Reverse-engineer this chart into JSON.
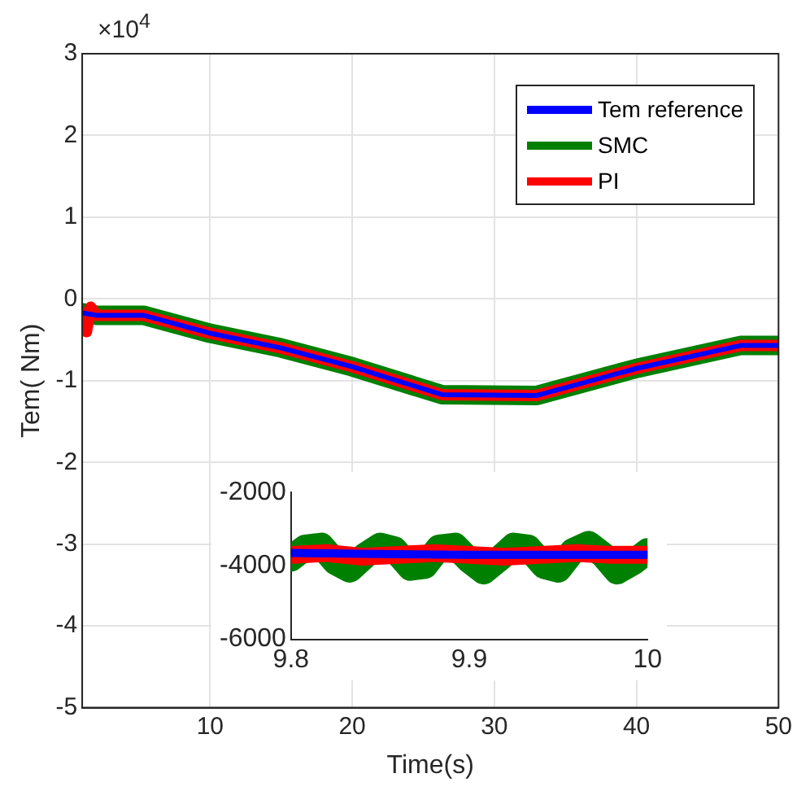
{
  "chart_data": [
    {
      "type": "line",
      "xlabel": "Time(s)",
      "ylabel": "Tem( Nm)",
      "annotations": [
        "×10$^{4}$"
      ],
      "xlim": [
        1,
        50
      ],
      "xticks": [
        10,
        20,
        30,
        40,
        50
      ],
      "ylim": [
        -5,
        3
      ],
      "yticks": [
        -5,
        -4,
        -3,
        -2,
        -1,
        0,
        1,
        2,
        3
      ],
      "grid": true,
      "legend": "top right",
      "series": [
        {
          "name": "Tem reference",
          "color": "#0000ff",
          "x": [
            1,
            2,
            5.3,
            10,
            15,
            20,
            26.3,
            33,
            40,
            47.3,
            50
          ],
          "values": [
            -0.17,
            -0.2,
            -0.2,
            -0.42,
            -0.6,
            -0.83,
            -1.17,
            -1.18,
            -0.85,
            -0.57,
            -0.57
          ]
        },
        {
          "name": "SMC",
          "color": "#008000",
          "x": [
            1,
            2,
            5.3,
            10,
            15,
            20,
            26.3,
            33,
            40,
            47.3,
            50
          ],
          "values": [
            -0.17,
            -0.2,
            -0.2,
            -0.42,
            -0.6,
            -0.83,
            -1.17,
            -1.18,
            -0.85,
            -0.57,
            -0.57
          ]
        },
        {
          "name": "PI",
          "color": "#ff0000",
          "x": [
            1,
            1.3,
            1.6,
            2,
            5.3,
            10,
            15,
            20,
            26.3,
            33,
            40,
            47.3,
            50
          ],
          "values": [
            -0.17,
            -0.4,
            -0.1,
            -0.2,
            -0.2,
            -0.42,
            -0.6,
            -0.83,
            -1.17,
            -1.18,
            -0.85,
            -0.57,
            -0.57
          ]
        }
      ]
    },
    {
      "type": "line",
      "xlim": [
        9.8,
        10
      ],
      "xticks": [
        9.8,
        9.9,
        10
      ],
      "ylim": [
        -6000,
        -2000
      ],
      "yticks": [
        -6000,
        -4000,
        -2000
      ],
      "series": [
        {
          "color": "#0000ff",
          "x": [
            9.8,
            9.9,
            10
          ],
          "values": [
            -3650,
            -3700,
            -3700
          ]
        },
        {
          "color": "#008000",
          "x": [
            9.8,
            9.808,
            9.817,
            9.825,
            9.833,
            9.842,
            9.85,
            9.858,
            9.867,
            9.875,
            9.883,
            9.892,
            9.9,
            9.908,
            9.917,
            9.925,
            9.933,
            9.942,
            9.95,
            9.958,
            9.967,
            9.975,
            9.983,
            9.992,
            10
          ],
          "values": [
            -3800,
            -3500,
            -3450,
            -3900,
            -4100,
            -3700,
            -3450,
            -3550,
            -4050,
            -4000,
            -3500,
            -3450,
            -3850,
            -4150,
            -3800,
            -3450,
            -3500,
            -4000,
            -4100,
            -3600,
            -3400,
            -3700,
            -4150,
            -3900,
            -3600
          ]
        },
        {
          "color": "#ff0000",
          "x": [
            9.8,
            9.82,
            9.84,
            9.86,
            9.88,
            9.9,
            9.92,
            9.94,
            9.96,
            9.98,
            10
          ],
          "values": [
            -3700,
            -3650,
            -3750,
            -3700,
            -3650,
            -3700,
            -3750,
            -3700,
            -3650,
            -3700,
            -3700
          ]
        }
      ]
    }
  ]
}
